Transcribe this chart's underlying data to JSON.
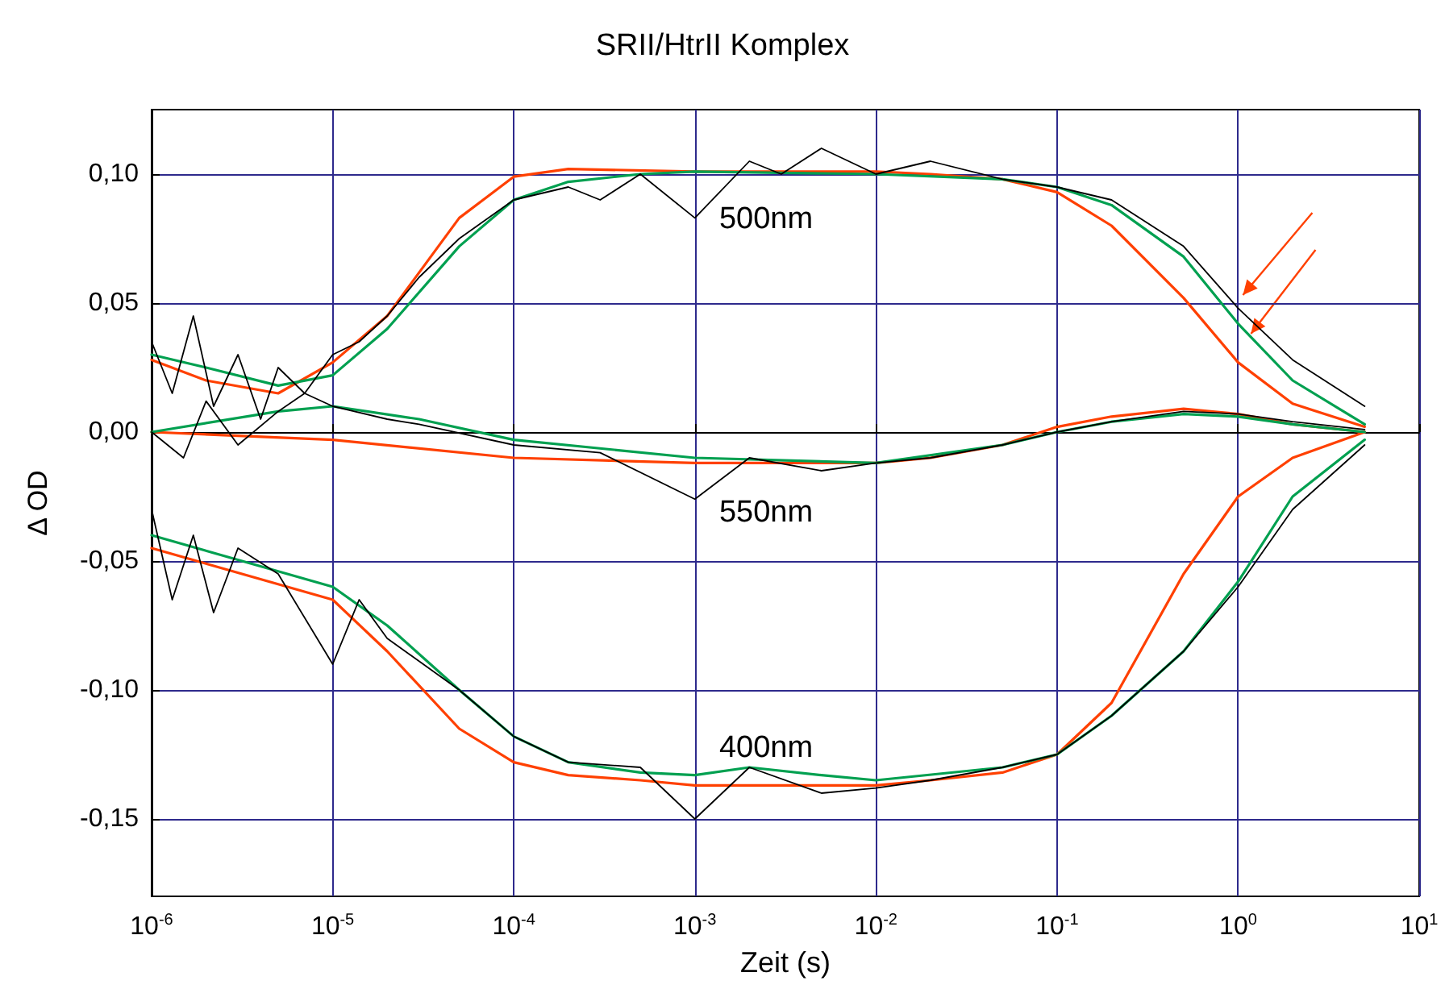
{
  "chart_data": {
    "type": "line",
    "title": "SRII/HtrII Komplex",
    "xlabel": "Zeit (s)",
    "ylabel": "Δ OD",
    "log": "x",
    "grid": true,
    "marker": "none",
    "line_style": "solid",
    "xlim": [
      1e-06,
      10
    ],
    "xticks": [
      {
        "value": 1e-06,
        "label": "10$^{-6}$"
      },
      {
        "value": 1e-05,
        "label": "10$^{-5}$"
      },
      {
        "value": 0.0001,
        "label": "10$^{-4}$"
      },
      {
        "value": 0.001,
        "label": "10$^{-3}$"
      },
      {
        "value": 0.01,
        "label": "10$^{-2}$"
      },
      {
        "value": 0.1,
        "label": "10$^{-1}$"
      },
      {
        "value": 1,
        "label": "10$^{0}$"
      },
      {
        "value": 10,
        "label": "10$^{1}$"
      }
    ],
    "ylim": [
      -0.18,
      0.125
    ],
    "yticks": [
      {
        "value": -0.15,
        "label": "-0,15"
      },
      {
        "value": -0.1,
        "label": "-0,10"
      },
      {
        "value": -0.05,
        "label": "-0,05"
      },
      {
        "value": 0,
        "label": "0,00"
      },
      {
        "value": 0.05,
        "label": "0,05"
      },
      {
        "value": 0.1,
        "label": "0,10"
      }
    ],
    "annotations": [
      "500nm",
      "550nm",
      "400nm"
    ],
    "series": [
      {
        "color": "#000000",
        "x": [
          1e-06,
          1.3e-06,
          1.7e-06,
          2.2e-06,
          3e-06,
          4e-06,
          5e-06,
          7e-06,
          1e-05,
          1.4e-05,
          2e-05,
          3e-05,
          5e-05,
          0.0001,
          0.0002,
          0.0003,
          0.0005,
          0.001,
          0.002,
          0.003,
          0.005,
          0.01,
          0.02,
          0.05,
          0.1,
          0.2,
          0.5,
          1,
          2,
          5
        ],
        "values": [
          0.035,
          0.015,
          0.045,
          0.01,
          0.03,
          0.005,
          0.025,
          0.015,
          0.03,
          0.035,
          0.045,
          0.06,
          0.075,
          0.09,
          0.095,
          0.09,
          0.1,
          0.083,
          0.105,
          0.1,
          0.11,
          0.1,
          0.105,
          0.098,
          0.095,
          0.09,
          0.072,
          0.048,
          0.028,
          0.01
        ]
      },
      {
        "color": "#00a050",
        "x": [
          1e-06,
          2e-06,
          5e-06,
          1e-05,
          2e-05,
          5e-05,
          0.0001,
          0.0002,
          0.0005,
          0.001,
          0.01,
          0.05,
          0.1,
          0.2,
          0.5,
          1,
          2,
          5
        ],
        "values": [
          0.03,
          0.025,
          0.018,
          0.022,
          0.04,
          0.072,
          0.09,
          0.097,
          0.1,
          0.101,
          0.1,
          0.098,
          0.095,
          0.088,
          0.068,
          0.042,
          0.02,
          0.003
        ]
      },
      {
        "color": "#ff4000",
        "x": [
          1e-06,
          2e-06,
          5e-06,
          1e-05,
          2e-05,
          5e-05,
          0.0001,
          0.0002,
          0.001,
          0.01,
          0.02,
          0.05,
          0.1,
          0.2,
          0.5,
          1,
          2,
          5
        ],
        "values": [
          0.028,
          0.02,
          0.015,
          0.027,
          0.045,
          0.083,
          0.099,
          0.102,
          0.101,
          0.101,
          0.1,
          0.098,
          0.093,
          0.08,
          0.052,
          0.027,
          0.011,
          0.002
        ]
      },
      {
        "color": "#000000",
        "x": [
          1e-06,
          1.5e-06,
          2e-06,
          3e-06,
          5e-06,
          7e-06,
          1e-05,
          2e-05,
          3e-05,
          0.0001,
          0.0003,
          0.001,
          0.002,
          0.005,
          0.01,
          0.02,
          0.05,
          0.1,
          0.2,
          0.5,
          1,
          2,
          5
        ],
        "values": [
          0.0,
          -0.01,
          0.012,
          -0.005,
          0.008,
          0.015,
          0.01,
          0.005,
          0.003,
          -0.005,
          -0.008,
          -0.026,
          -0.01,
          -0.015,
          -0.012,
          -0.01,
          -0.005,
          0.0,
          0.004,
          0.008,
          0.007,
          0.004,
          0.001
        ]
      },
      {
        "color": "#00a050",
        "x": [
          1e-06,
          5e-06,
          1e-05,
          3e-05,
          0.0001,
          0.001,
          0.01,
          0.05,
          0.1,
          0.2,
          0.5,
          1,
          2,
          5
        ],
        "values": [
          0.0,
          0.008,
          0.01,
          0.005,
          -0.003,
          -0.01,
          -0.012,
          -0.005,
          0.0,
          0.004,
          0.007,
          0.006,
          0.003,
          0.0
        ]
      },
      {
        "color": "#ff4000",
        "x": [
          1e-06,
          1e-05,
          0.0001,
          0.001,
          0.01,
          0.02,
          0.05,
          0.1,
          0.2,
          0.5,
          1,
          2,
          5
        ],
        "values": [
          0.0,
          -0.003,
          -0.01,
          -0.012,
          -0.012,
          -0.01,
          -0.005,
          0.002,
          0.006,
          0.009,
          0.007,
          0.003,
          0.0
        ]
      },
      {
        "color": "#000000",
        "x": [
          1e-06,
          1.3e-06,
          1.7e-06,
          2.2e-06,
          3e-06,
          5e-06,
          1e-05,
          1.4e-05,
          2e-05,
          5e-05,
          0.0001,
          0.0002,
          0.0005,
          0.001,
          0.002,
          0.005,
          0.01,
          0.02,
          0.05,
          0.1,
          0.2,
          0.5,
          1,
          2,
          5
        ],
        "values": [
          -0.03,
          -0.065,
          -0.04,
          -0.07,
          -0.045,
          -0.055,
          -0.09,
          -0.065,
          -0.08,
          -0.1,
          -0.118,
          -0.128,
          -0.13,
          -0.15,
          -0.13,
          -0.14,
          -0.138,
          -0.135,
          -0.13,
          -0.125,
          -0.11,
          -0.085,
          -0.06,
          -0.03,
          -0.005
        ]
      },
      {
        "color": "#00a050",
        "x": [
          1e-06,
          1e-05,
          2e-05,
          5e-05,
          0.0001,
          0.0002,
          0.0005,
          0.001,
          0.002,
          0.005,
          0.01,
          0.05,
          0.1,
          0.2,
          0.5,
          1,
          2,
          5
        ],
        "values": [
          -0.04,
          -0.06,
          -0.075,
          -0.1,
          -0.118,
          -0.128,
          -0.132,
          -0.133,
          -0.13,
          -0.133,
          -0.135,
          -0.13,
          -0.125,
          -0.11,
          -0.085,
          -0.058,
          -0.025,
          -0.003
        ]
      },
      {
        "color": "#ff4000",
        "x": [
          1e-06,
          1e-05,
          2e-05,
          5e-05,
          0.0001,
          0.0002,
          0.0005,
          0.001,
          0.01,
          0.02,
          0.05,
          0.1,
          0.2,
          0.5,
          1,
          2,
          5
        ],
        "values": [
          -0.045,
          -0.065,
          -0.085,
          -0.115,
          -0.128,
          -0.133,
          -0.135,
          -0.137,
          -0.137,
          -0.135,
          -0.132,
          -0.125,
          -0.105,
          -0.055,
          -0.025,
          -0.01,
          0.0
        ]
      }
    ]
  }
}
